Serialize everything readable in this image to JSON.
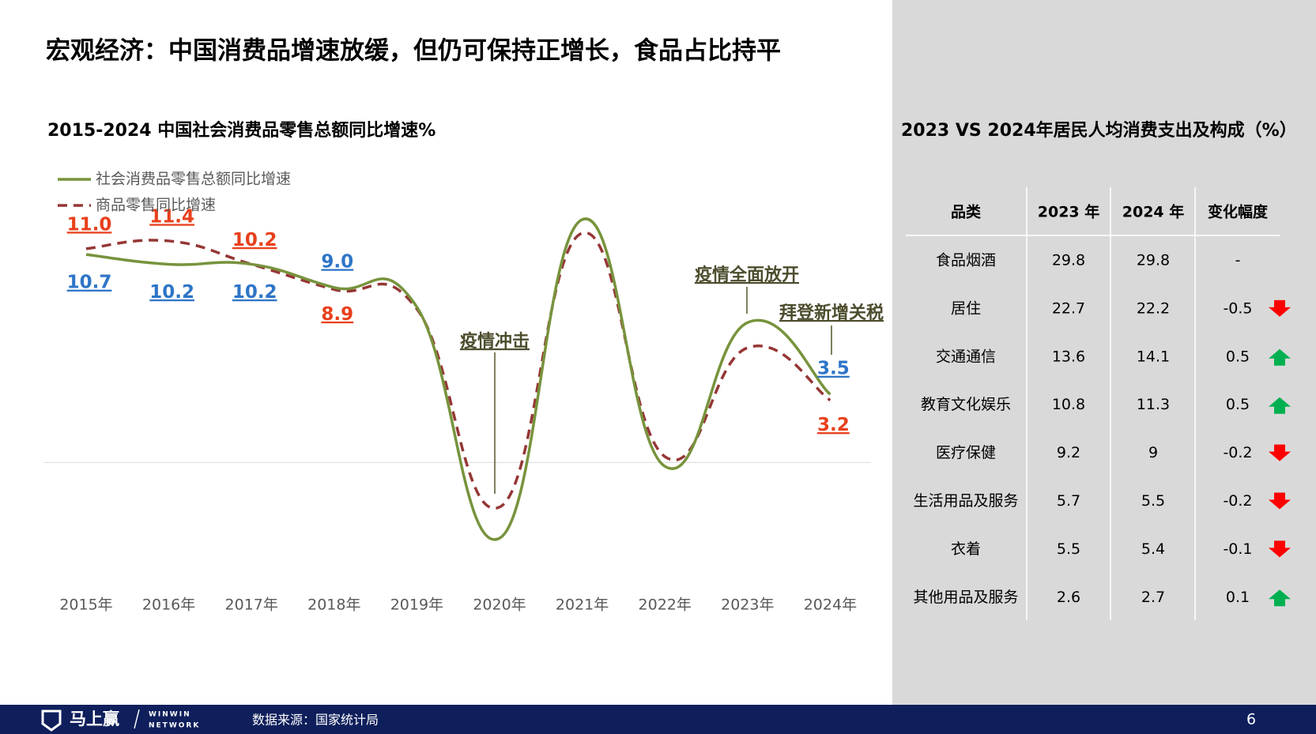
{
  "header": {
    "title": "宏观经济：中国消费品增速放缓，但仍可保持正增长，食品占比持平"
  },
  "chart_data": {
    "type": "line",
    "title": "2015-2024 中国社会消费品零售总额同比增速%",
    "categories": [
      "2015年",
      "2016年",
      "2017年",
      "2018年",
      "2019年",
      "2020年",
      "2021年",
      "2022年",
      "2023年",
      "2024年"
    ],
    "series": [
      {
        "name": "社会消费品零售总额同比增速",
        "color": "#77933c",
        "dash": false,
        "values": [
          10.7,
          10.2,
          10.2,
          9.0,
          8.0,
          -3.9,
          12.5,
          -0.2,
          7.2,
          3.5
        ],
        "value_labels": [
          "10.7",
          "10.2",
          "10.2",
          "9.0",
          null,
          null,
          null,
          null,
          null,
          "3.5"
        ],
        "label_color": "#2e75c7"
      },
      {
        "name": "商品零售同比增速",
        "color": "#953735",
        "dash": true,
        "values": [
          11.0,
          11.4,
          10.2,
          8.9,
          7.9,
          -2.3,
          11.8,
          0.3,
          5.9,
          3.2
        ],
        "value_labels": [
          "11.0",
          "11.4",
          "10.2",
          "8.9",
          null,
          null,
          null,
          null,
          null,
          "3.2"
        ],
        "label_color": "#e8401c"
      }
    ],
    "ylim": [
      -8,
      14
    ],
    "annotations": [
      "疫情冲击",
      "疫情全面放开",
      "拜登新增关税"
    ]
  },
  "table": {
    "title": "2023 VS 2024年居民人均消费支出及构成（%）",
    "header": [
      "品类",
      "2023 年",
      "2024 年",
      "变化幅度"
    ],
    "rows": [
      [
        "食品烟酒",
        "29.8",
        "29.8",
        "-"
      ],
      [
        "居住",
        "22.7",
        "22.2",
        "-0.5"
      ],
      [
        "交通通信",
        "13.6",
        "14.1",
        "0.5"
      ],
      [
        "教育文化娱乐",
        "10.8",
        "11.3",
        "0.5"
      ],
      [
        "医疗保健",
        "9.2",
        "9",
        "-0.2"
      ],
      [
        "生活用品及服务",
        "5.7",
        "5.5",
        "-0.2"
      ],
      [
        "衣着",
        "5.5",
        "5.4",
        "-0.1"
      ],
      [
        "其他用品及服务",
        "2.6",
        "2.7",
        "0.1"
      ]
    ]
  },
  "footer": {
    "brand": "马上赢",
    "brand_en_1": "WINWIN",
    "brand_en_2": "NETWORK",
    "source": "数据来源：国家统计局",
    "page": "6"
  }
}
